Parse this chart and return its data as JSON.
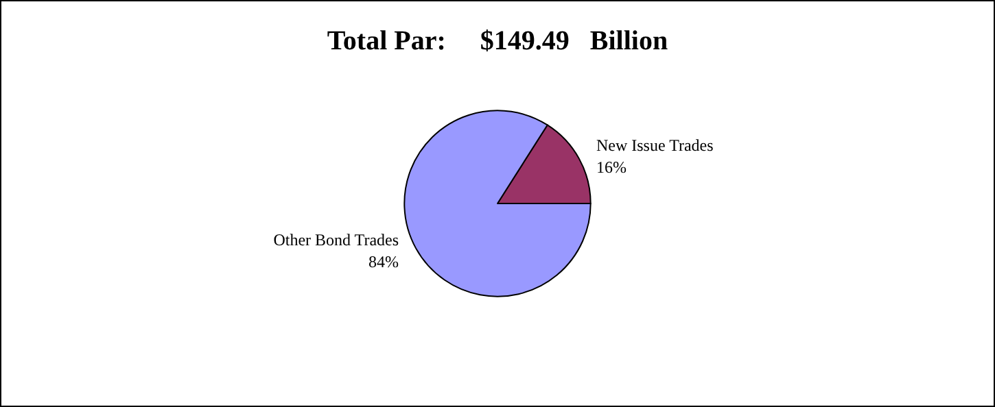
{
  "chart_data": {
    "type": "pie",
    "title": "Total Par:     $149.49   Billion",
    "categories": [
      "New Issue Trades",
      "Other Bond Trades"
    ],
    "values": [
      16,
      84
    ],
    "colors": [
      "#993366",
      "#9999ff"
    ],
    "value_labels": [
      "16%",
      "84%"
    ],
    "legend": false
  }
}
